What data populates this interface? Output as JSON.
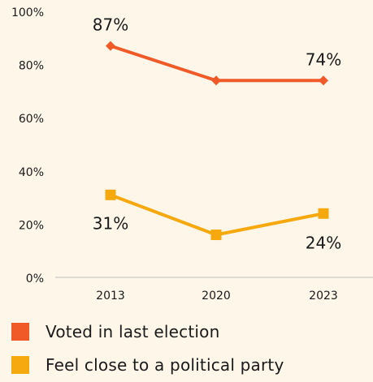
{
  "chart_data": {
    "type": "line",
    "x": [
      "2013",
      "2020",
      "2023"
    ],
    "ylim": [
      0,
      100
    ],
    "y_ticks": [
      0,
      20,
      40,
      60,
      80,
      100
    ],
    "y_tick_labels": [
      "0%",
      "20%",
      "40%",
      "60%",
      "80%",
      "100%"
    ],
    "grid": false,
    "legend_position": "bottom-left",
    "series": [
      {
        "name": "Voted in last election",
        "values": [
          87,
          74,
          74
        ],
        "color": "#f05a28",
        "marker": "diamond",
        "data_labels": [
          "87%",
          "",
          "74%"
        ]
      },
      {
        "name": "Feel close to a political party",
        "values": [
          31,
          16,
          24
        ],
        "color": "#f6a80f",
        "marker": "square",
        "data_labels": [
          "31%",
          "",
          "24%"
        ]
      }
    ]
  }
}
